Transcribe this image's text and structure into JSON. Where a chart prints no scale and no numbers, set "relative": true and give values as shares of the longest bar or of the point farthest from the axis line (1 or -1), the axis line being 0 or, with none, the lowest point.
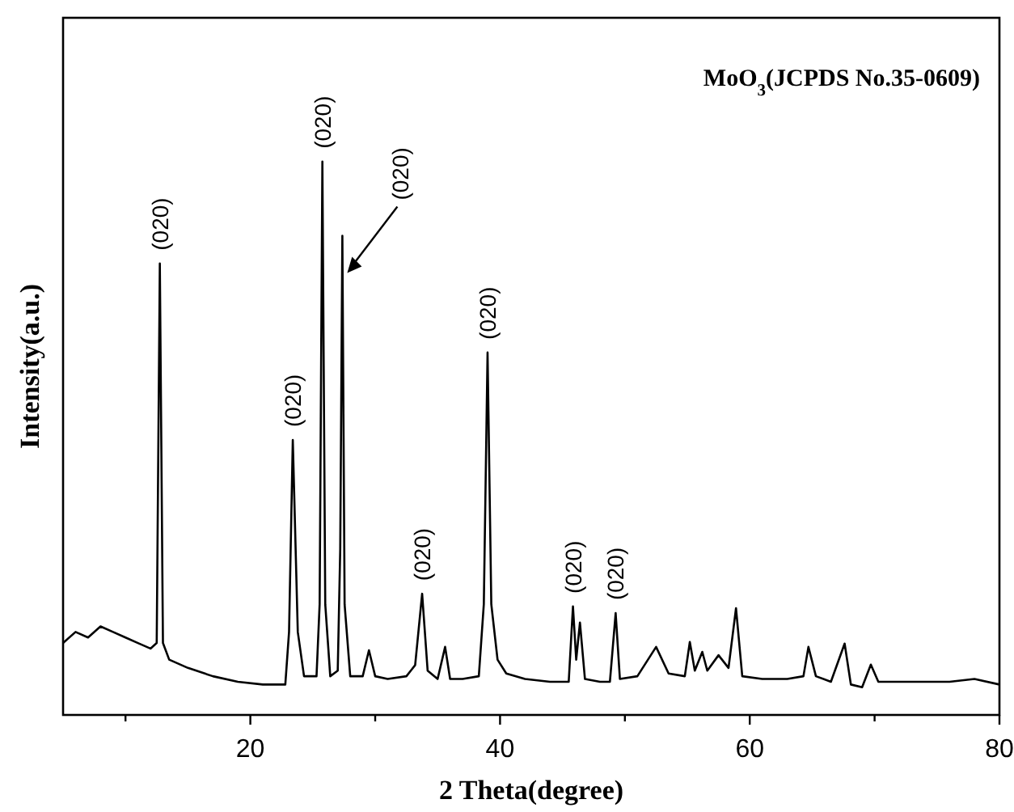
{
  "chart_data": {
    "type": "line",
    "relative": true,
    "xlabel": "2 Theta(degree)",
    "ylabel": "Intensity(a.u.)",
    "xlim": [
      5,
      80
    ],
    "xticks": [
      {
        "value": 10,
        "label": null
      },
      20,
      {
        "value": 30,
        "label": null
      },
      40,
      {
        "value": 50,
        "label": null
      },
      60,
      {
        "value": 70,
        "label": null
      },
      80
    ],
    "grid": false,
    "marker": "none",
    "line_style": "solid",
    "series": [
      {
        "color": "#000000",
        "x": [
          5,
          6,
          7,
          8,
          9,
          10,
          11,
          12,
          12.5,
          12.75,
          13.0,
          13.5,
          15,
          17,
          19,
          21,
          22.8,
          23.1,
          23.4,
          23.8,
          24.3,
          25.3,
          25.55,
          25.77,
          26.0,
          26.4,
          27.0,
          27.2,
          27.37,
          27.55,
          28.0,
          29.0,
          29.5,
          30.0,
          31,
          32.5,
          33.2,
          33.76,
          34.2,
          35.0,
          35.6,
          36.0,
          37,
          38.3,
          38.7,
          39.0,
          39.3,
          39.8,
          40.5,
          42,
          44,
          45.5,
          45.84,
          46.1,
          46.4,
          46.8,
          48,
          48.8,
          49.26,
          49.6,
          51,
          52.5,
          53.5,
          54.8,
          55.2,
          55.6,
          56.2,
          56.6,
          57.5,
          58.3,
          58.9,
          59.4,
          61,
          63,
          64.3,
          64.7,
          65.3,
          66.5,
          67.6,
          68.1,
          69.0,
          69.7,
          70.3,
          72,
          74,
          76,
          78,
          80
        ],
        "values": [
          0.13,
          0.15,
          0.14,
          0.16,
          0.15,
          0.14,
          0.13,
          0.12,
          0.13,
          0.816,
          0.13,
          0.1,
          0.085,
          0.07,
          0.06,
          0.055,
          0.055,
          0.15,
          0.497,
          0.15,
          0.07,
          0.07,
          0.2,
          1.0,
          0.2,
          0.07,
          0.08,
          0.3,
          0.866,
          0.2,
          0.07,
          0.07,
          0.117,
          0.07,
          0.065,
          0.07,
          0.09,
          0.219,
          0.08,
          0.065,
          0.123,
          0.065,
          0.065,
          0.07,
          0.2,
          0.655,
          0.2,
          0.1,
          0.075,
          0.065,
          0.06,
          0.06,
          0.196,
          0.1,
          0.167,
          0.065,
          0.06,
          0.06,
          0.184,
          0.065,
          0.07,
          0.123,
          0.075,
          0.07,
          0.132,
          0.08,
          0.114,
          0.08,
          0.108,
          0.085,
          0.193,
          0.07,
          0.065,
          0.065,
          0.07,
          0.123,
          0.07,
          0.06,
          0.129,
          0.055,
          0.05,
          0.091,
          0.06,
          0.06,
          0.06,
          0.06,
          0.065,
          0.055
        ]
      }
    ],
    "annotations": [
      "MoO$_{3}$(JCPDS No.35-0609)",
      {
        "text": "(020)",
        "x": 12.75,
        "y": 0.816
      },
      {
        "text": "(020)",
        "x": 23.4,
        "y": 0.497
      },
      {
        "text": "(020)",
        "x": 25.77,
        "y": 1.0
      },
      {
        "text": "(020)",
        "x": 27.37,
        "y": 0.866
      },
      {
        "text": "(020)",
        "x": 33.76,
        "y": 0.219
      },
      {
        "text": "(020)",
        "x": 39.0,
        "y": 0.655
      },
      {
        "text": "(020)",
        "x": 45.84,
        "y": 0.196
      },
      {
        "text": "(020)",
        "x": 49.26,
        "y": 0.184
      }
    ]
  }
}
